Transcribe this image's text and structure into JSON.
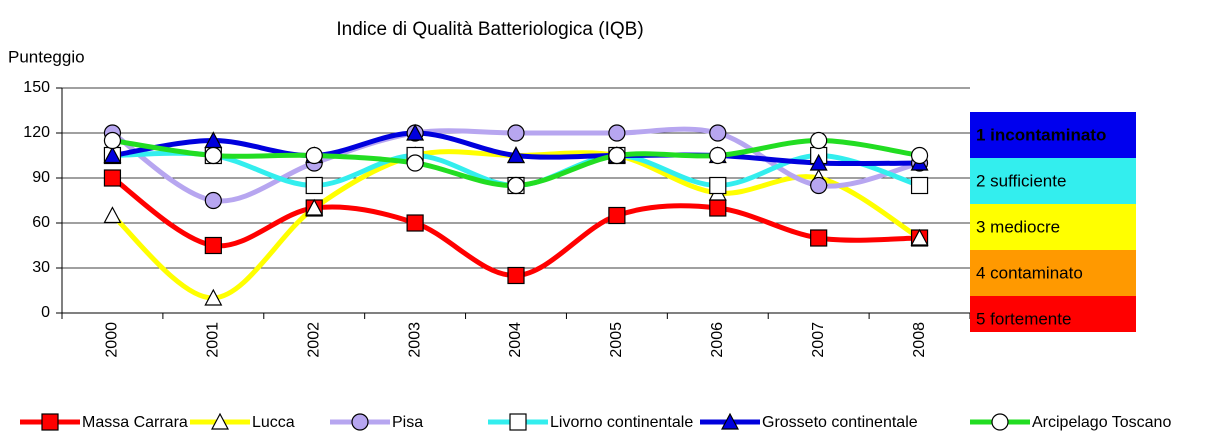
{
  "chart_data": {
    "type": "line",
    "title": "Indice di Qualità Batteriologica (IQB)",
    "y_label": "Punteggio",
    "categories": [
      "2000",
      "2001",
      "2002",
      "2003",
      "2004",
      "2005",
      "2006",
      "2007",
      "2008"
    ],
    "series": [
      {
        "name": "Massa Carrara",
        "color": "#ff0000",
        "marker": "square",
        "marker_fill": "#ff0000",
        "values": [
          90,
          45,
          70,
          60,
          25,
          65,
          70,
          50,
          50
        ]
      },
      {
        "name": "Lucca",
        "color": "#ffff00",
        "marker": "triangle",
        "marker_fill": "#ffffff",
        "values": [
          65,
          10,
          70,
          105,
          105,
          105,
          80,
          90,
          50
        ]
      },
      {
        "name": "Pisa",
        "color": "#b7a6f0",
        "marker": "circle",
        "marker_fill": "#b7a6f0",
        "values": [
          120,
          75,
          100,
          120,
          120,
          120,
          120,
          85,
          100
        ]
      },
      {
        "name": "Livorno continentale",
        "color": "#33eeee",
        "marker": "square",
        "marker_fill": "#ffffff",
        "values": [
          105,
          105,
          85,
          105,
          85,
          105,
          85,
          105,
          85
        ]
      },
      {
        "name": "Grosseto continentale",
        "color": "#0000dd",
        "marker": "triangle",
        "marker_fill": "#0000dd",
        "values": [
          105,
          115,
          105,
          120,
          105,
          105,
          105,
          100,
          100
        ]
      },
      {
        "name": "Arcipelago Toscano",
        "color": "#22dd22",
        "marker": "circle",
        "marker_fill": "#ffffff",
        "values": [
          115,
          105,
          105,
          100,
          85,
          105,
          105,
          115,
          105
        ]
      }
    ],
    "ylim": [
      0,
      150
    ],
    "yticks": [
      0,
      30,
      60,
      90,
      120,
      150
    ],
    "grid": true,
    "bands": [
      {
        "label": "1 incontaminato",
        "color": "#0000ee",
        "text_color": "#ffffff",
        "bold": true
      },
      {
        "label": "2 sufficiente",
        "color": "#33eeee",
        "text_color": "#000000",
        "bold": false
      },
      {
        "label": "3 mediocre",
        "color": "#ffff00",
        "text_color": "#000000",
        "bold": false
      },
      {
        "label": "4 contaminato",
        "color": "#ff9900",
        "text_color": "#000000",
        "bold": false
      },
      {
        "label": "5 fortemente",
        "color": "#ff0000",
        "text_color": "#ffffff",
        "bold": false
      }
    ],
    "legend": "bottom"
  }
}
